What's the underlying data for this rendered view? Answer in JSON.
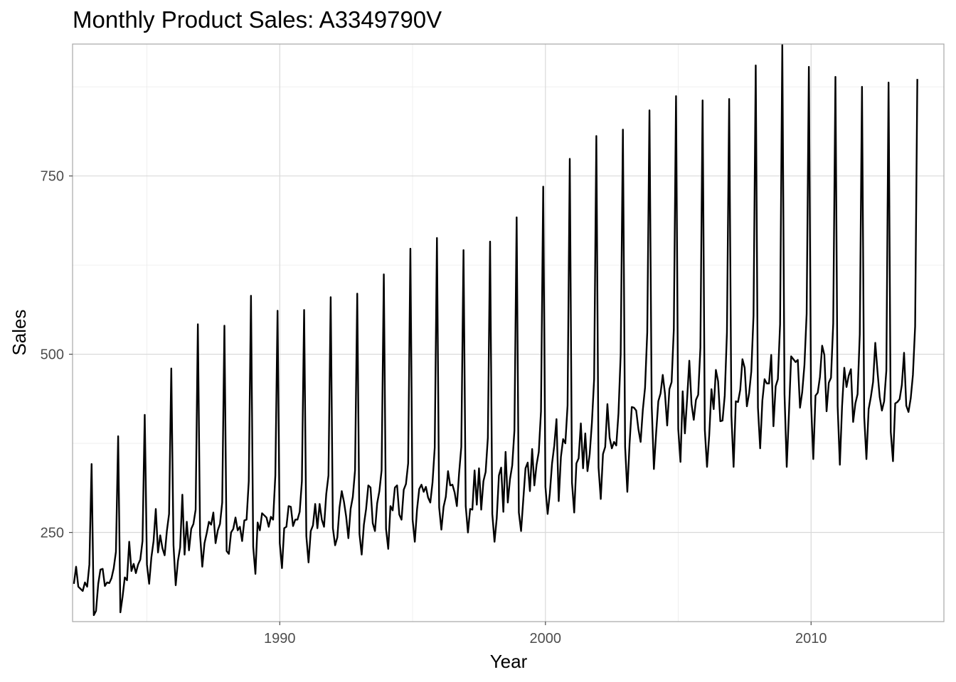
{
  "chart_data": {
    "type": "line",
    "title": "Monthly Product Sales: A3349790V",
    "xlabel": "Year",
    "ylabel": "Sales",
    "xlim": [
      1982.2,
      2015.0
    ],
    "ylim": [
      125,
      935
    ],
    "x_major_ticks": [
      1990,
      2000,
      2010
    ],
    "x_tick_labels": [
      "1990",
      "2000",
      "2010"
    ],
    "x_minor_ticks": [
      1985,
      1995,
      2005,
      2015
    ],
    "y_major_ticks": [
      250,
      500,
      750
    ],
    "y_tick_labels": [
      "250",
      "500",
      "750"
    ],
    "y_minor_ticks": [
      125,
      375,
      625,
      875
    ],
    "grid": true,
    "legend": "none",
    "series_color": "#000000",
    "start_year": 1982,
    "start_month": 4,
    "series": [
      {
        "values": [
          178,
          202,
          174,
          171,
          168,
          180,
          174,
          205,
          346,
          134,
          140,
          178,
          198,
          199,
          175,
          180,
          179,
          186,
          200,
          223,
          385,
          138,
          160,
          187,
          183,
          237,
          196,
          206,
          193,
          205,
          212,
          238,
          415,
          205,
          178,
          215,
          238,
          283,
          222,
          246,
          228,
          218,
          252,
          276,
          480,
          232,
          176,
          210,
          229,
          303,
          219,
          265,
          225,
          255,
          262,
          282,
          542,
          247,
          202,
          235,
          249,
          265,
          261,
          278,
          235,
          253,
          262,
          292,
          540,
          224,
          220,
          250,
          255,
          271,
          253,
          258,
          238,
          267,
          268,
          322,
          582,
          230,
          192,
          264,
          253,
          277,
          274,
          271,
          258,
          272,
          268,
          330,
          561,
          235,
          200,
          256,
          258,
          287,
          286,
          259,
          268,
          268,
          279,
          322,
          562,
          245,
          208,
          252,
          260,
          290,
          256,
          290,
          268,
          258,
          304,
          330,
          580,
          256,
          232,
          243,
          285,
          308,
          293,
          272,
          242,
          283,
          300,
          337,
          585,
          248,
          219,
          261,
          283,
          316,
          313,
          263,
          252,
          291,
          308,
          337,
          612,
          255,
          227,
          287,
          281,
          313,
          316,
          275,
          268,
          310,
          318,
          347,
          648,
          268,
          237,
          282,
          311,
          317,
          307,
          314,
          299,
          292,
          320,
          369,
          663,
          285,
          254,
          286,
          300,
          336,
          316,
          317,
          306,
          287,
          333,
          370,
          646,
          287,
          250,
          283,
          282,
          337,
          289,
          340,
          282,
          322,
          335,
          383,
          658,
          276,
          237,
          270,
          330,
          341,
          279,
          363,
          292,
          325,
          344,
          393,
          692,
          278,
          252,
          296,
          340,
          348,
          308,
          367,
          316,
          345,
          363,
          420,
          735,
          314,
          276,
          305,
          347,
          372,
          409,
          294,
          356,
          381,
          375,
          428,
          774,
          320,
          278,
          347,
          354,
          403,
          340,
          389,
          336,
          360,
          404,
          465,
          806,
          341,
          297,
          360,
          370,
          430,
          383,
          368,
          377,
          372,
          417,
          500,
          815,
          370,
          307,
          374,
          426,
          425,
          421,
          395,
          377,
          422,
          453,
          531,
          842,
          428,
          339,
          389,
          434,
          445,
          471,
          445,
          400,
          451,
          461,
          535,
          862,
          395,
          349,
          448,
          389,
          437,
          491,
          430,
          408,
          436,
          443,
          509,
          856,
          394,
          342,
          387,
          451,
          423,
          478,
          462,
          406,
          407,
          442,
          531,
          858,
          414,
          342,
          434,
          433,
          450,
          493,
          481,
          427,
          445,
          476,
          554,
          905,
          425,
          368,
          435,
          465,
          459,
          459,
          499,
          399,
          455,
          465,
          542,
          934,
          444,
          342,
          417,
          497,
          493,
          489,
          492,
          425,
          447,
          485,
          557,
          903,
          431,
          353,
          442,
          446,
          468,
          512,
          499,
          420,
          460,
          467,
          543,
          889,
          427,
          345,
          427,
          481,
          454,
          470,
          479,
          405,
          431,
          444,
          528,
          875,
          412,
          353,
          423,
          440,
          461,
          516,
          476,
          440,
          421,
          434,
          477,
          881,
          391,
          350,
          431,
          433,
          437,
          457,
          502,
          428,
          419,
          438,
          471,
          539,
          886
        ]
      }
    ]
  }
}
